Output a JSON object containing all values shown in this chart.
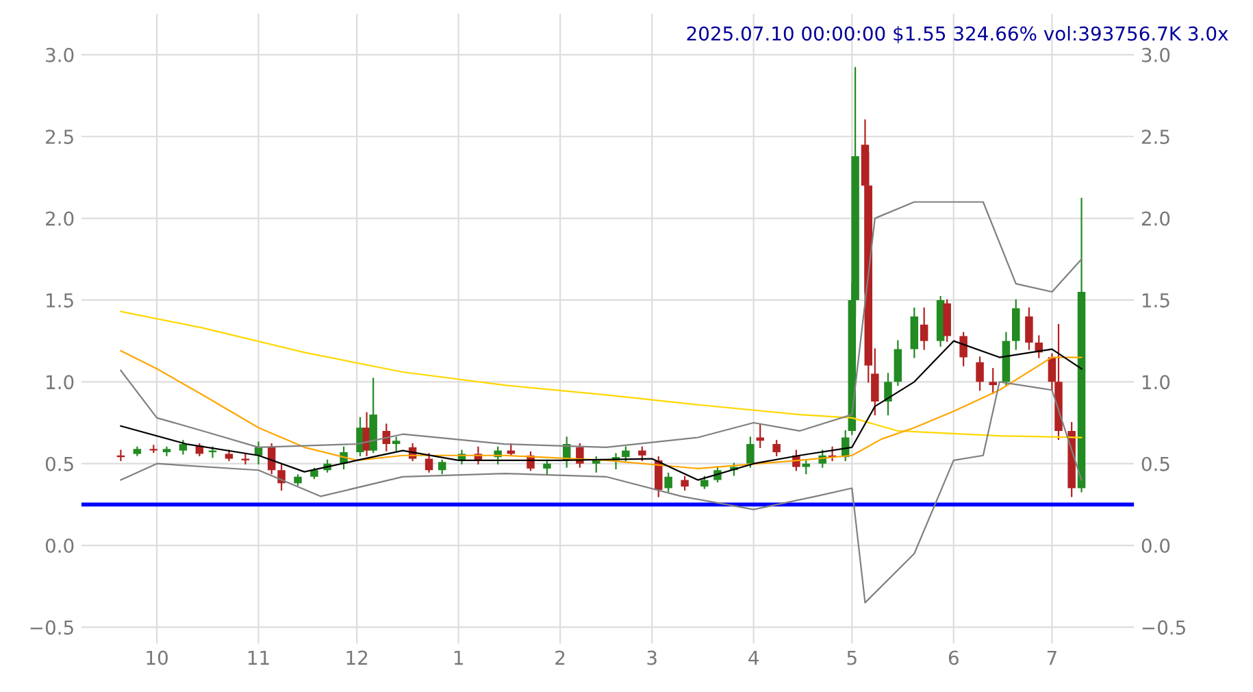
{
  "chart_data": {
    "type": "candlestick",
    "title": "2025.07.10 00:00:00 $1.55 324.66% vol:393756.7K 3.0x",
    "x": [
      "2024-09-20",
      "2024-09-25",
      "2024-09-30",
      "2024-10-04",
      "2024-10-09",
      "2024-10-14",
      "2024-10-18",
      "2024-10-23",
      "2024-10-28",
      "2024-11-01",
      "2024-11-05",
      "2024-11-08",
      "2024-11-13",
      "2024-11-18",
      "2024-11-22",
      "2024-11-27",
      "2024-12-02",
      "2024-12-04",
      "2024-12-06",
      "2024-12-10",
      "2024-12-13",
      "2024-12-18",
      "2024-12-23",
      "2024-12-27",
      "2025-01-02",
      "2025-01-07",
      "2025-01-13",
      "2025-01-17",
      "2025-01-23",
      "2025-01-28",
      "2025-02-03",
      "2025-02-07",
      "2025-02-12",
      "2025-02-18",
      "2025-02-21",
      "2025-02-26",
      "2025-03-03",
      "2025-03-06",
      "2025-03-11",
      "2025-03-17",
      "2025-03-21",
      "2025-03-26",
      "2025-03-31",
      "2025-04-03",
      "2025-04-08",
      "2025-04-14",
      "2025-04-17",
      "2025-04-22",
      "2025-04-25",
      "2025-04-29",
      "2025-05-01",
      "2025-05-02",
      "2025-05-05",
      "2025-05-06",
      "2025-05-08",
      "2025-05-12",
      "2025-05-15",
      "2025-05-20",
      "2025-05-23",
      "2025-05-28",
      "2025-05-30",
      "2025-06-04",
      "2025-06-09",
      "2025-06-13",
      "2025-06-17",
      "2025-06-20",
      "2025-06-24",
      "2025-06-27",
      "2025-07-01",
      "2025-07-03",
      "2025-07-07",
      "2025-07-10"
    ],
    "ohlc": [
      [
        0.55,
        0.58,
        0.52,
        0.54
      ],
      [
        0.56,
        0.6,
        0.55,
        0.59
      ],
      [
        0.59,
        0.61,
        0.57,
        0.58
      ],
      [
        0.57,
        0.6,
        0.55,
        0.59
      ],
      [
        0.58,
        0.64,
        0.56,
        0.62
      ],
      [
        0.61,
        0.62,
        0.55,
        0.56
      ],
      [
        0.57,
        0.6,
        0.54,
        0.58
      ],
      [
        0.56,
        0.58,
        0.52,
        0.53
      ],
      [
        0.53,
        0.56,
        0.5,
        0.52
      ],
      [
        0.55,
        0.63,
        0.5,
        0.6
      ],
      [
        0.6,
        0.62,
        0.44,
        0.46
      ],
      [
        0.46,
        0.49,
        0.34,
        0.38
      ],
      [
        0.38,
        0.43,
        0.37,
        0.42
      ],
      [
        0.42,
        0.47,
        0.41,
        0.46
      ],
      [
        0.46,
        0.52,
        0.45,
        0.5
      ],
      [
        0.5,
        0.6,
        0.47,
        0.57
      ],
      [
        0.57,
        0.78,
        0.55,
        0.72
      ],
      [
        0.72,
        0.81,
        0.55,
        0.58
      ],
      [
        0.58,
        1.02,
        0.57,
        0.8
      ],
      [
        0.7,
        0.74,
        0.58,
        0.62
      ],
      [
        0.62,
        0.66,
        0.58,
        0.64
      ],
      [
        0.6,
        0.62,
        0.52,
        0.53
      ],
      [
        0.53,
        0.56,
        0.45,
        0.46
      ],
      [
        0.46,
        0.52,
        0.44,
        0.51
      ],
      [
        0.52,
        0.58,
        0.5,
        0.56
      ],
      [
        0.56,
        0.6,
        0.5,
        0.52
      ],
      [
        0.54,
        0.6,
        0.5,
        0.58
      ],
      [
        0.58,
        0.62,
        0.55,
        0.56
      ],
      [
        0.55,
        0.57,
        0.46,
        0.47
      ],
      [
        0.47,
        0.52,
        0.44,
        0.5
      ],
      [
        0.52,
        0.66,
        0.48,
        0.62
      ],
      [
        0.6,
        0.62,
        0.48,
        0.5
      ],
      [
        0.5,
        0.54,
        0.45,
        0.52
      ],
      [
        0.52,
        0.56,
        0.47,
        0.54
      ],
      [
        0.54,
        0.6,
        0.52,
        0.58
      ],
      [
        0.58,
        0.6,
        0.52,
        0.55
      ],
      [
        0.52,
        0.54,
        0.3,
        0.34
      ],
      [
        0.35,
        0.44,
        0.33,
        0.42
      ],
      [
        0.4,
        0.42,
        0.34,
        0.36
      ],
      [
        0.36,
        0.42,
        0.35,
        0.4
      ],
      [
        0.4,
        0.48,
        0.39,
        0.46
      ],
      [
        0.46,
        0.5,
        0.43,
        0.48
      ],
      [
        0.5,
        0.66,
        0.48,
        0.62
      ],
      [
        0.66,
        0.74,
        0.6,
        0.64
      ],
      [
        0.62,
        0.64,
        0.55,
        0.57
      ],
      [
        0.55,
        0.58,
        0.46,
        0.48
      ],
      [
        0.48,
        0.52,
        0.44,
        0.5
      ],
      [
        0.5,
        0.58,
        0.48,
        0.55
      ],
      [
        0.55,
        0.6,
        0.52,
        0.54
      ],
      [
        0.54,
        0.7,
        0.52,
        0.66
      ],
      [
        0.7,
        1.6,
        0.68,
        1.5
      ],
      [
        1.5,
        2.92,
        1.4,
        2.38
      ],
      [
        2.45,
        2.6,
        1.55,
        2.2
      ],
      [
        2.2,
        2.4,
        1.0,
        1.1
      ],
      [
        1.05,
        1.2,
        0.8,
        0.88
      ],
      [
        0.88,
        1.05,
        0.8,
        1.0
      ],
      [
        1.0,
        1.25,
        0.98,
        1.2
      ],
      [
        1.2,
        1.45,
        1.15,
        1.4
      ],
      [
        1.35,
        1.45,
        1.2,
        1.25
      ],
      [
        1.25,
        1.52,
        1.22,
        1.5
      ],
      [
        1.48,
        1.5,
        1.25,
        1.28
      ],
      [
        1.28,
        1.3,
        1.1,
        1.15
      ],
      [
        1.12,
        1.15,
        0.95,
        1.0
      ],
      [
        1.0,
        1.08,
        0.93,
        0.98
      ],
      [
        1.0,
        1.3,
        0.98,
        1.25
      ],
      [
        1.25,
        1.5,
        1.2,
        1.45
      ],
      [
        1.4,
        1.45,
        1.2,
        1.24
      ],
      [
        1.24,
        1.28,
        1.15,
        1.18
      ],
      [
        1.15,
        1.17,
        0.95,
        1.0
      ],
      [
        1.0,
        1.35,
        0.65,
        0.7
      ],
      [
        0.7,
        0.75,
        0.3,
        0.35
      ],
      [
        0.35,
        2.12,
        0.33,
        1.55
      ]
    ],
    "colors": [
      "#b22222",
      "#228b22",
      "#b22222",
      "#228b22",
      "#228b22",
      "#b22222",
      "#228b22",
      "#b22222",
      "#b22222",
      "#228b22",
      "#b22222",
      "#b22222",
      "#228b22",
      "#228b22",
      "#228b22",
      "#228b22",
      "#228b22",
      "#b22222",
      "#228b22",
      "#b22222",
      "#228b22",
      "#b22222",
      "#b22222",
      "#228b22",
      "#228b22",
      "#b22222",
      "#228b22",
      "#b22222",
      "#b22222",
      "#228b22",
      "#228b22",
      "#b22222",
      "#228b22",
      "#228b22",
      "#228b22",
      "#b22222",
      "#b22222",
      "#228b22",
      "#b22222",
      "#228b22",
      "#228b22",
      "#228b22",
      "#228b22",
      "#b22222",
      "#b22222",
      "#b22222",
      "#228b22",
      "#228b22",
      "#b22222",
      "#228b22",
      "#228b22",
      "#228b22",
      "#b22222",
      "#b22222",
      "#b22222",
      "#228b22",
      "#228b22",
      "#228b22",
      "#b22222",
      "#228b22",
      "#b22222",
      "#b22222",
      "#b22222",
      "#b22222",
      "#228b22",
      "#228b22",
      "#b22222",
      "#b22222",
      "#b22222",
      "#b22222",
      "#b22222",
      "#228b22"
    ],
    "series": [
      {
        "type": "line",
        "color": "#ffd700",
        "x": [
          "2024-09-20",
          "2024-10-15",
          "2024-11-15",
          "2024-12-15",
          "2025-01-15",
          "2025-02-15",
          "2025-03-15",
          "2025-04-15",
          "2025-05-01",
          "2025-05-15",
          "2025-06-15",
          "2025-07-10"
        ],
        "values": [
          1.43,
          1.33,
          1.18,
          1.06,
          0.98,
          0.92,
          0.86,
          0.8,
          0.78,
          0.7,
          0.67,
          0.66
        ]
      },
      {
        "type": "line",
        "color": "#ffa500",
        "x": [
          "2024-09-20",
          "2024-10-01",
          "2024-10-15",
          "2024-11-01",
          "2024-11-15",
          "2024-12-01",
          "2024-12-15",
          "2025-01-15",
          "2025-02-15",
          "2025-03-15",
          "2025-04-15",
          "2025-05-01",
          "2025-05-10",
          "2025-05-20",
          "2025-06-01",
          "2025-06-15",
          "2025-07-01",
          "2025-07-10"
        ],
        "values": [
          1.19,
          1.08,
          0.92,
          0.72,
          0.6,
          0.52,
          0.55,
          0.55,
          0.52,
          0.47,
          0.52,
          0.55,
          0.65,
          0.72,
          0.82,
          0.95,
          1.15,
          1.15
        ]
      },
      {
        "type": "line",
        "color": "#000000",
        "x": [
          "2024-09-20",
          "2024-10-10",
          "2024-11-01",
          "2024-11-15",
          "2024-12-01",
          "2024-12-15",
          "2025-01-01",
          "2025-02-01",
          "2025-03-01",
          "2025-03-15",
          "2025-04-01",
          "2025-04-15",
          "2025-05-01",
          "2025-05-08",
          "2025-05-20",
          "2025-06-01",
          "2025-06-15",
          "2025-07-01",
          "2025-07-10"
        ],
        "values": [
          0.73,
          0.62,
          0.55,
          0.45,
          0.52,
          0.58,
          0.52,
          0.52,
          0.53,
          0.4,
          0.5,
          0.55,
          0.6,
          0.85,
          1.0,
          1.25,
          1.15,
          1.2,
          1.08
        ]
      },
      {
        "type": "line",
        "color": "#808080",
        "x": [
          "2024-09-20",
          "2024-10-01",
          "2024-10-15",
          "2024-11-01",
          "2024-12-01",
          "2024-12-15",
          "2025-01-15",
          "2025-02-15",
          "2025-03-15",
          "2025-04-01",
          "2025-04-15",
          "2025-05-01",
          "2025-05-08",
          "2025-05-20",
          "2025-06-10",
          "2025-06-20",
          "2025-07-01",
          "2025-07-10"
        ],
        "values": [
          1.07,
          0.78,
          0.7,
          0.6,
          0.62,
          0.68,
          0.62,
          0.6,
          0.66,
          0.75,
          0.7,
          0.8,
          2.0,
          2.1,
          2.1,
          1.6,
          1.55,
          1.75
        ]
      },
      {
        "type": "line",
        "color": "#808080",
        "x": [
          "2024-09-20",
          "2024-10-01",
          "2024-11-01",
          "2024-11-20",
          "2024-12-15",
          "2025-01-15",
          "2025-02-15",
          "2025-03-10",
          "2025-04-01",
          "2025-04-20",
          "2025-05-01",
          "2025-05-05",
          "2025-05-20",
          "2025-06-01",
          "2025-06-10",
          "2025-06-15",
          "2025-07-01",
          "2025-07-10"
        ],
        "values": [
          0.4,
          0.5,
          0.46,
          0.3,
          0.42,
          0.44,
          0.42,
          0.3,
          0.22,
          0.3,
          0.35,
          -0.35,
          -0.05,
          0.52,
          0.55,
          1.0,
          0.95,
          0.4
        ]
      }
    ],
    "ref_lines": [
      {
        "axis": "y",
        "value": 0.25,
        "color": "#0000ff"
      }
    ],
    "xlim": [
      "2024-09-08",
      "2025-07-26"
    ],
    "xticks": [
      {
        "value": "2024-10-01",
        "label": "10"
      },
      {
        "value": "2024-11-01",
        "label": "11"
      },
      {
        "value": "2024-12-01",
        "label": "12"
      },
      {
        "value": "2025-01-01",
        "label": "1"
      },
      {
        "value": "2025-02-01",
        "label": "2"
      },
      {
        "value": "2025-03-01",
        "label": "3"
      },
      {
        "value": "2025-04-01",
        "label": "4"
      },
      {
        "value": "2025-05-01",
        "label": "5"
      },
      {
        "value": "2025-06-01",
        "label": "6"
      },
      {
        "value": "2025-07-01",
        "label": "7"
      }
    ],
    "ylim": [
      -0.6,
      3.25
    ],
    "yticks": [
      {
        "value": -0.5,
        "label": "−0.5"
      },
      {
        "value": 0,
        "label": "0.0"
      },
      0.5,
      {
        "value": 1,
        "label": "1.0"
      },
      1.5,
      {
        "value": 2,
        "label": "2.0"
      },
      2.5,
      {
        "value": 3,
        "label": "3.0"
      }
    ],
    "y2lim": [
      -0.6,
      3.25
    ],
    "y2ticks": [
      {
        "value": -0.5,
        "label": "−0.5"
      },
      {
        "value": 0,
        "label": "0.0"
      },
      0.5,
      {
        "value": 1,
        "label": "1.0"
      },
      1.5,
      {
        "value": 2,
        "label": "2.0"
      },
      2.5,
      {
        "value": 3,
        "label": "3.0"
      }
    ],
    "grid": true,
    "marker": "none",
    "line_style": "solid"
  }
}
